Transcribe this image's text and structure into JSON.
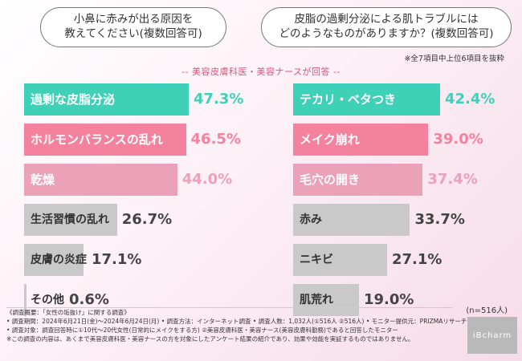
{
  "questions": {
    "left": "小鼻に赤みが出る原因を\n教えてください(複数回答可)",
    "right": "皮脂の過剰分泌による肌トラブルには\nどのようなものがありますか？(複数回答可)"
  },
  "top_note": "※全7項目中上位6項目を抜粋",
  "respondents": "-- 美容皮膚科医・美容ナースが回答 --",
  "chart_data": [
    {
      "type": "bar",
      "orientation": "horizontal",
      "categories": [
        "過剰な皮脂分泌",
        "ホルモンバランスの乱れ",
        "乾燥",
        "生活習慣の乱れ",
        "皮膚の炎症",
        "その他"
      ],
      "values": [
        47.3,
        46.5,
        44.0,
        26.7,
        17.1,
        0.6
      ],
      "value_labels": [
        "47.3%",
        "46.5%",
        "44.0%",
        "26.7%",
        "17.1%",
        "0.6%"
      ],
      "unit": "%",
      "colors": [
        "#3fd0b8",
        "#f4829e",
        "#eba1b8",
        "#c9c9c9",
        "#c9c9c9",
        "#c9c9c9"
      ]
    },
    {
      "type": "bar",
      "orientation": "horizontal",
      "categories": [
        "テカリ・ベタつき",
        "メイク崩れ",
        "毛穴の開き",
        "赤み",
        "ニキビ",
        "肌荒れ"
      ],
      "values": [
        42.4,
        39.0,
        37.4,
        33.7,
        27.1,
        19.0
      ],
      "value_labels": [
        "42.4%",
        "39.0%",
        "37.4%",
        "33.7%",
        "27.1%",
        "19.0%"
      ],
      "unit": "%",
      "colors": [
        "#3fd0b8",
        "#f4829e",
        "#eba1b8",
        "#c9c9c9",
        "#c9c9c9",
        "#c9c9c9"
      ]
    }
  ],
  "n_label": "(n=516人)",
  "survey_notes": [
    "《調査概要：「女性の垢抜け」に関する調査》",
    "• 調査期間：2024年6月21日(金)〜2024年6月24日(月) • 調査方法：インターネット調査 • 調査人数：1,032人(①516人 ②516人) • モニター提供元：PRIZMAリサーチ",
    "• 調査対象：調査回答時に①10代〜20代女性(日常的にメイクをする方) ②美容皮膚科医・美容ナース(美容皮膚科勤務)であると回答したモニター",
    "※この調査の内容は、あくまで美容皮膚科医・美容ナースの方を対象にしたアンケート結果の紹介であり、効果や効能を実証するものではありません。"
  ],
  "brand": "iBcharm"
}
